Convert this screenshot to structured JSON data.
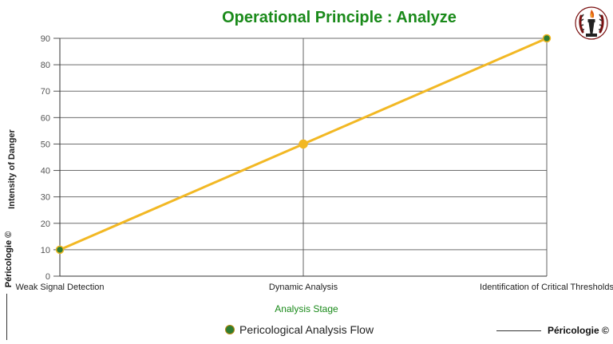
{
  "chart_data": {
    "type": "line",
    "title": "Operational Principle : Analyze",
    "xlabel": "Analysis Stage",
    "ylabel": "Intensity of Danger",
    "categories": [
      "Weak Signal Detection",
      "Dynamic Analysis",
      "Identification of Critical Thresholds"
    ],
    "series": [
      {
        "name": "Pericological Analysis Flow",
        "values": [
          10,
          50,
          90
        ]
      }
    ],
    "ylim": [
      0,
      90
    ],
    "yticks": [
      0,
      10,
      20,
      30,
      40,
      50,
      60,
      70,
      80,
      90
    ],
    "grid": true,
    "legend_position": "bottom-center"
  },
  "colors": {
    "title": "#1a8a1a",
    "line": "#f2b824",
    "endpoint_marker": "#2e7d32",
    "grid": "#555555"
  },
  "watermark": {
    "side_text": "Péricologie ©",
    "footer_text": "Péricologie ©"
  },
  "logo": {
    "icon": "torch-laurel-emblem-icon"
  }
}
